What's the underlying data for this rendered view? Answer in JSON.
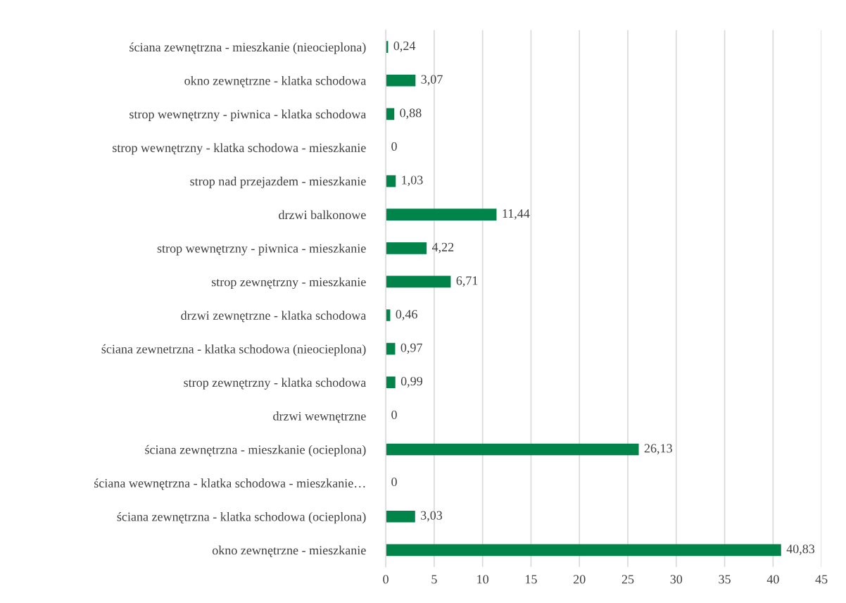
{
  "chart_data": {
    "type": "bar",
    "orientation": "horizontal",
    "categories": [
      "ściana zewnętrzna - mieszkanie (nieocieplona)",
      "okno zewnętrzne - klatka schodowa",
      "strop wewnętrzny - piwnica - klatka schodowa",
      "strop wewnętrzny - klatka schodowa - mieszkanie",
      "strop nad przejazdem - mieszkanie",
      "drzwi balkonowe",
      "strop wewnętrzny - piwnica - mieszkanie",
      "strop zewnętrzny - mieszkanie",
      "drzwi zewnętrzne - klatka schodowa",
      "ściana zewnetrzna - klatka schodowa (nieocieplona)",
      "strop zewnętrzny - klatka schodowa",
      "drzwi wewnętrzne",
      "ściana zewnętrzna - mieszkanie (ocieplona)",
      "ściana wewnętrzna - klatka schodowa - mieszkanie…",
      "ściana zewnętrzna - klatka schodowa (ocieplona)",
      "okno zewnętrzne - mieszkanie"
    ],
    "values": [
      0.24,
      3.07,
      0.88,
      0,
      1.03,
      11.44,
      4.22,
      6.71,
      0.46,
      0.97,
      0.99,
      0,
      26.13,
      0,
      3.03,
      40.83
    ],
    "value_labels": [
      "0,24",
      "3,07",
      "0,88",
      "0",
      "1,03",
      "11,44",
      "4,22",
      "6,71",
      "0,46",
      "0,97",
      "0,99",
      "0",
      "26,13",
      "0",
      "3,03",
      "40,83"
    ],
    "color": "#00844a",
    "xlim": [
      0,
      45
    ],
    "xticks": [
      0,
      5,
      10,
      15,
      20,
      25,
      30,
      35,
      40,
      45
    ],
    "grid": "x",
    "legend": false
  }
}
